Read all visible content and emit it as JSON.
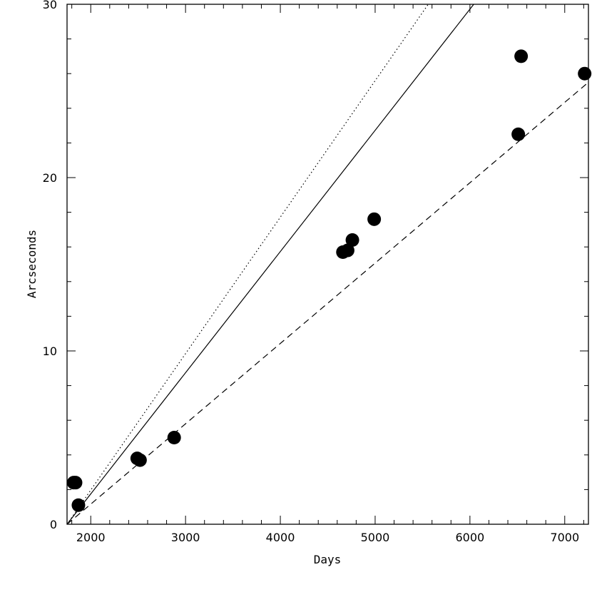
{
  "chart_data": {
    "type": "scatter",
    "title": "",
    "xlabel": "Days",
    "ylabel": "Arcseconds",
    "xlim": [
      1750,
      7250
    ],
    "ylim": [
      0,
      30
    ],
    "x_ticks": [
      2000,
      3000,
      4000,
      5000,
      6000,
      7000
    ],
    "x_tick_labels": [
      "2000",
      "3000",
      "4000",
      "5000",
      "6000",
      "7000"
    ],
    "y_ticks": [
      0,
      10,
      20,
      30
    ],
    "y_tick_labels": [
      "0",
      "10",
      "20",
      "30"
    ],
    "grid": false,
    "points": [
      {
        "x": 1820,
        "y": 2.4
      },
      {
        "x": 1840,
        "y": 2.4
      },
      {
        "x": 1870,
        "y": 1.1
      },
      {
        "x": 2490,
        "y": 3.8
      },
      {
        "x": 2520,
        "y": 3.7
      },
      {
        "x": 2880,
        "y": 5.0
      },
      {
        "x": 4660,
        "y": 15.7
      },
      {
        "x": 4710,
        "y": 15.8
      },
      {
        "x": 4760,
        "y": 16.4
      },
      {
        "x": 4990,
        "y": 17.6
      },
      {
        "x": 6510,
        "y": 22.5
      },
      {
        "x": 6540,
        "y": 27.0
      },
      {
        "x": 7210,
        "y": 26.0
      }
    ],
    "lines": [
      {
        "style": "dotted",
        "x": [
          1750,
          5560
        ],
        "y": [
          0,
          30
        ]
      },
      {
        "style": "solid",
        "x": [
          1750,
          6040
        ],
        "y": [
          0,
          30
        ]
      },
      {
        "style": "dashed",
        "x": [
          1750,
          7250
        ],
        "y": [
          0,
          25.5
        ]
      }
    ]
  }
}
